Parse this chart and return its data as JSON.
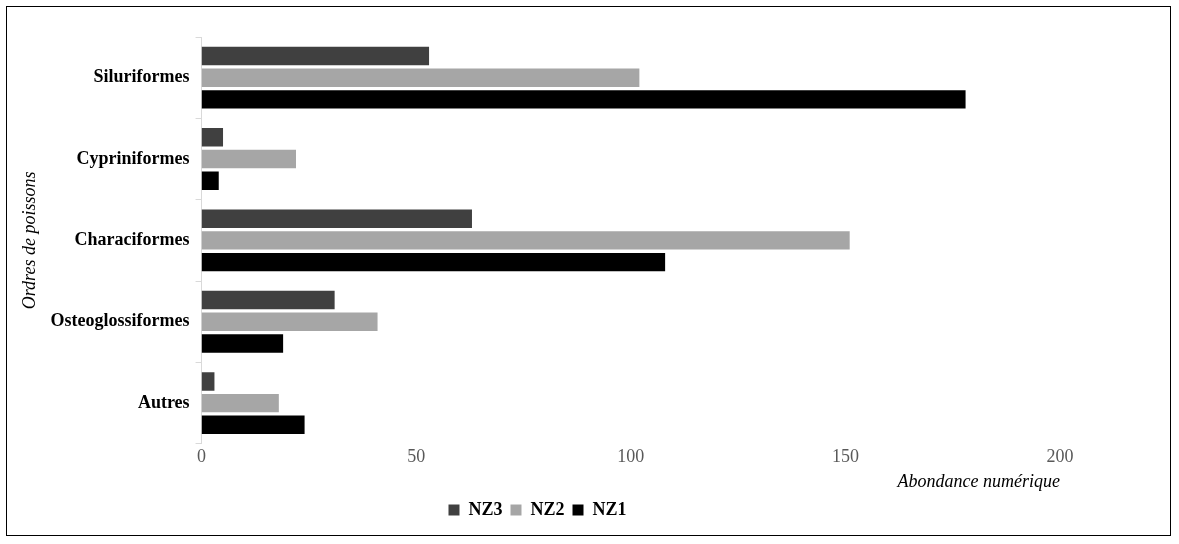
{
  "chart_data": {
    "type": "bar",
    "orientation": "horizontal",
    "xlabel": "Abondance numérique",
    "ylabel": "Ordres de poissons",
    "categories": [
      "Siluriformes",
      "Cypriniformes",
      "Characiformes",
      "Osteoglossiformes",
      "Autres"
    ],
    "series": [
      {
        "name": "NZ3",
        "color": "#404040",
        "values": [
          53,
          5,
          63,
          31,
          3
        ]
      },
      {
        "name": "NZ2",
        "color": "#a6a6a6",
        "values": [
          102,
          22,
          151,
          41,
          18
        ]
      },
      {
        "name": "NZ1",
        "color": "#000000",
        "values": [
          178,
          4,
          108,
          19,
          24
        ]
      }
    ],
    "xlim": [
      0,
      200
    ],
    "xticks": [
      0,
      50,
      100,
      150,
      200
    ],
    "grid": false,
    "legend": "bottom"
  }
}
